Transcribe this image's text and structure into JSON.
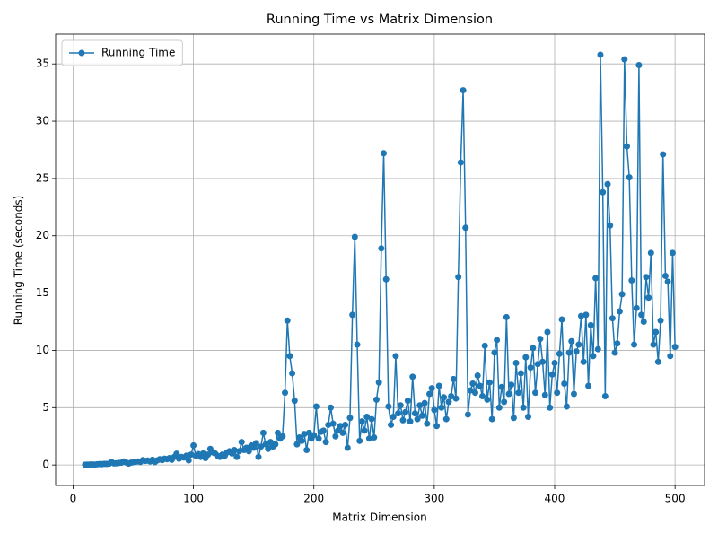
{
  "chart_data": {
    "type": "line",
    "title": "Running Time vs Matrix Dimension",
    "x_label": "Matrix Dimension",
    "y_label": "Running Time (seconds)",
    "x": [
      10,
      12,
      14,
      16,
      18,
      20,
      22,
      24,
      26,
      28,
      30,
      32,
      34,
      36,
      38,
      40,
      42,
      44,
      46,
      48,
      50,
      52,
      54,
      56,
      58,
      60,
      62,
      64,
      66,
      68,
      70,
      72,
      74,
      76,
      78,
      80,
      82,
      84,
      86,
      88,
      90,
      92,
      94,
      96,
      98,
      100,
      102,
      104,
      106,
      108,
      110,
      112,
      114,
      116,
      118,
      120,
      122,
      124,
      126,
      128,
      130,
      132,
      134,
      136,
      138,
      140,
      142,
      144,
      146,
      148,
      150,
      152,
      154,
      156,
      158,
      160,
      162,
      164,
      166,
      168,
      170,
      172,
      174,
      176,
      178,
      180,
      182,
      184,
      186,
      188,
      190,
      192,
      194,
      196,
      198,
      200,
      202,
      204,
      206,
      208,
      210,
      212,
      214,
      216,
      218,
      220,
      222,
      224,
      226,
      228,
      230,
      232,
      234,
      236,
      238,
      240,
      242,
      244,
      246,
      248,
      250,
      252,
      254,
      256,
      258,
      260,
      262,
      264,
      266,
      268,
      270,
      272,
      274,
      276,
      278,
      280,
      282,
      284,
      286,
      288,
      290,
      292,
      294,
      296,
      298,
      300,
      302,
      304,
      306,
      308,
      310,
      312,
      314,
      316,
      318,
      320,
      322,
      324,
      326,
      328,
      330,
      332,
      334,
      336,
      338,
      340,
      342,
      344,
      346,
      348,
      350,
      352,
      354,
      356,
      358,
      360,
      362,
      364,
      366,
      368,
      370,
      372,
      374,
      376,
      378,
      380,
      382,
      384,
      386,
      388,
      390,
      392,
      394,
      396,
      398,
      400,
      402,
      404,
      406,
      408,
      410,
      412,
      414,
      416,
      418,
      420,
      422,
      424,
      426,
      428,
      430,
      432,
      434,
      436,
      438,
      440,
      442,
      444,
      446,
      448,
      450,
      452,
      454,
      456,
      458,
      460,
      462,
      464,
      466,
      468,
      470,
      472,
      474,
      476,
      478,
      480,
      482,
      484,
      486,
      488,
      490,
      492,
      494,
      496,
      498,
      500
    ],
    "series": [
      {
        "name": "Running Time",
        "color": "#1f77b4",
        "values": [
          0.02,
          0.03,
          0.04,
          0.05,
          0.03,
          0.06,
          0.08,
          0.07,
          0.1,
          0.09,
          0.12,
          0.25,
          0.14,
          0.15,
          0.18,
          0.2,
          0.3,
          0.22,
          0.12,
          0.2,
          0.24,
          0.28,
          0.3,
          0.26,
          0.42,
          0.35,
          0.38,
          0.3,
          0.45,
          0.25,
          0.4,
          0.5,
          0.42,
          0.55,
          0.5,
          0.6,
          0.45,
          0.7,
          0.98,
          0.55,
          0.7,
          0.65,
          0.8,
          0.4,
          0.9,
          1.7,
          0.8,
          0.95,
          0.7,
          1.0,
          0.6,
          0.9,
          1.4,
          1.1,
          1.0,
          0.8,
          0.7,
          0.9,
          0.8,
          1.1,
          1.2,
          1.0,
          1.3,
          0.7,
          1.2,
          2.0,
          1.3,
          1.5,
          1.2,
          1.7,
          1.5,
          1.9,
          0.7,
          1.6,
          2.8,
          1.8,
          1.4,
          2.0,
          1.6,
          1.8,
          2.8,
          2.3,
          2.5,
          6.3,
          12.6,
          9.5,
          8.0,
          5.6,
          1.8,
          2.4,
          2.1,
          2.7,
          1.3,
          2.8,
          2.3,
          2.6,
          5.1,
          2.3,
          2.9,
          3.0,
          2.0,
          3.5,
          5.0,
          3.6,
          2.5,
          3.0,
          3.4,
          2.8,
          3.5,
          1.5,
          4.1,
          13.1,
          19.9,
          10.5,
          2.1,
          3.8,
          3.0,
          4.2,
          2.3,
          4.0,
          2.4,
          5.7,
          7.2,
          18.9,
          27.2,
          16.2,
          5.1,
          3.5,
          4.2,
          9.5,
          4.5,
          5.2,
          3.9,
          4.6,
          5.6,
          3.8,
          7.7,
          4.5,
          4.0,
          5.2,
          4.3,
          5.4,
          3.6,
          6.2,
          6.7,
          4.8,
          3.4,
          6.9,
          5.0,
          5.9,
          4.0,
          5.5,
          6.0,
          7.5,
          5.8,
          16.4,
          26.4,
          32.7,
          20.7,
          4.4,
          6.5,
          7.1,
          6.3,
          7.8,
          6.9,
          6.0,
          10.4,
          5.7,
          7.2,
          4.0,
          9.8,
          10.9,
          5.0,
          6.8,
          5.5,
          12.9,
          6.2,
          7.0,
          4.1,
          8.9,
          6.3,
          8.0,
          5.0,
          9.4,
          4.2,
          8.5,
          10.2,
          6.3,
          8.8,
          11.0,
          9.0,
          6.1,
          11.6,
          5.0,
          7.9,
          8.9,
          6.3,
          9.7,
          12.7,
          7.1,
          5.1,
          9.8,
          10.8,
          6.2,
          9.9,
          10.5,
          13.0,
          9.0,
          13.1,
          6.9,
          12.2,
          9.5,
          16.3,
          10.1,
          35.8,
          23.8,
          6.0,
          24.5,
          20.9,
          12.8,
          9.8,
          10.6,
          13.4,
          14.9,
          35.4,
          27.8,
          25.1,
          16.1,
          10.5,
          13.7,
          34.9,
          13.1,
          12.5,
          16.4,
          14.6,
          18.5,
          10.5,
          11.6,
          9.0,
          12.6,
          27.1,
          16.5,
          16.0,
          9.5,
          18.5,
          10.3
        ]
      }
    ],
    "xlim": [
      -14.5,
      524.5
    ],
    "xticks": [
      0,
      100,
      200,
      300,
      400,
      500
    ],
    "ylim": [
      -1.79,
      37.6
    ],
    "yticks": [
      0,
      5,
      10,
      15,
      20,
      25,
      30,
      35
    ],
    "grid": true,
    "legend": "upper left"
  }
}
